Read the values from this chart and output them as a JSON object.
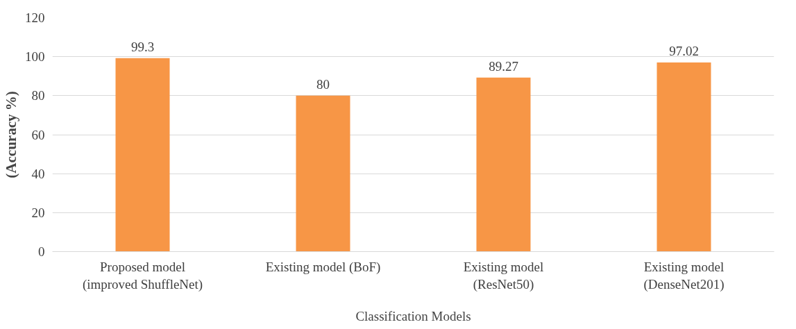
{
  "chart_data": {
    "type": "bar",
    "xlabel": "Classification Models",
    "ylabel": "(Accuracy %)",
    "categories": [
      "Proposed model\n(improved ShuffleNet)",
      "Existing model (BoF)",
      "Existing model\n(ResNet50)",
      "Existing model\n(DenseNet201)"
    ],
    "values": [
      99.3,
      80,
      89.27,
      97.02
    ],
    "color": "#f79646",
    "ylim": [
      0,
      120
    ],
    "yticks": [
      0,
      20,
      40,
      60,
      80,
      100,
      120
    ],
    "grid": "y",
    "data_labels": true
  }
}
